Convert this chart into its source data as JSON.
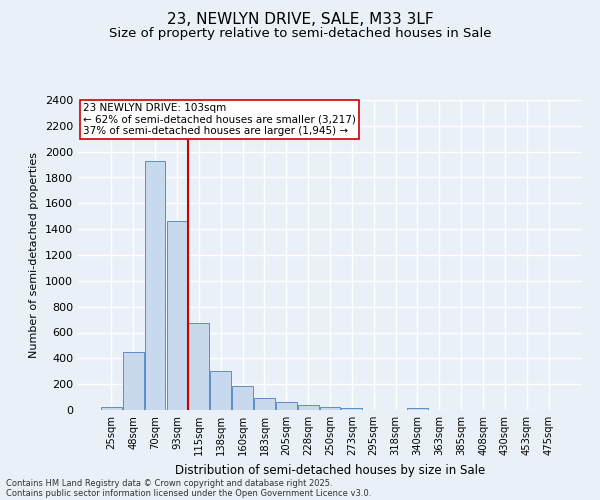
{
  "title1": "23, NEWLYN DRIVE, SALE, M33 3LF",
  "title2": "Size of property relative to semi-detached houses in Sale",
  "xlabel": "Distribution of semi-detached houses by size in Sale",
  "ylabel": "Number of semi-detached properties",
  "bar_labels": [
    "25sqm",
    "48sqm",
    "70sqm",
    "93sqm",
    "115sqm",
    "138sqm",
    "160sqm",
    "183sqm",
    "205sqm",
    "228sqm",
    "250sqm",
    "273sqm",
    "295sqm",
    "318sqm",
    "340sqm",
    "363sqm",
    "385sqm",
    "408sqm",
    "430sqm",
    "453sqm",
    "475sqm"
  ],
  "bar_values": [
    25,
    450,
    1930,
    1460,
    670,
    300,
    185,
    95,
    60,
    35,
    20,
    18,
    3,
    2,
    18,
    2,
    1,
    0,
    0,
    0,
    0
  ],
  "bar_color": "#c9d9ed",
  "bar_edge_color": "#5b8fc7",
  "vline_x": 3.5,
  "vline_color": "#cc0000",
  "annotation_text": "23 NEWLYN DRIVE: 103sqm\n← 62% of semi-detached houses are smaller (3,217)\n37% of semi-detached houses are larger (1,945) →",
  "annotation_box_color": "#ffffff",
  "annotation_box_edge": "#cc0000",
  "ylim": [
    0,
    2400
  ],
  "yticks": [
    0,
    200,
    400,
    600,
    800,
    1000,
    1200,
    1400,
    1600,
    1800,
    2000,
    2200,
    2400
  ],
  "footer_line1": "Contains HM Land Registry data © Crown copyright and database right 2025.",
  "footer_line2": "Contains public sector information licensed under the Open Government Licence v3.0.",
  "background_color": "#eaf0f8",
  "plot_background": "#eaf0f8",
  "grid_color": "#ffffff",
  "title1_fontsize": 11,
  "title2_fontsize": 9.5
}
